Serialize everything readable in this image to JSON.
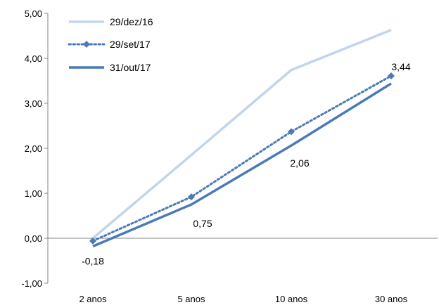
{
  "chart_data": {
    "type": "line",
    "categories": [
      "2 anos",
      "5 anos",
      "10 anos",
      "30 anos"
    ],
    "ylim": [
      -1,
      5
    ],
    "yticks": [
      "-1,00",
      "0,00",
      "1,00",
      "2,00",
      "3,00",
      "4,00",
      "5,00"
    ],
    "ytick_values": [
      -1,
      0,
      1,
      2,
      3,
      4,
      5
    ],
    "legend_position": "top-left",
    "grid": false,
    "series": [
      {
        "name": "29/dez/16",
        "values": [
          0.0,
          1.85,
          3.74,
          4.63
        ],
        "color": "#c3d5ea",
        "style": "solid",
        "marker": "none"
      },
      {
        "name": "29/set/17",
        "values": [
          -0.06,
          0.92,
          2.37,
          3.61
        ],
        "color": "#4a7ab8",
        "style": "dotted",
        "marker": "diamond"
      },
      {
        "name": "31/out/17",
        "values": [
          -0.18,
          0.75,
          2.06,
          3.44
        ],
        "color": "#4a7ab8",
        "style": "solid",
        "marker": "none"
      }
    ],
    "data_labels": [
      {
        "series": 2,
        "index": 0,
        "text": "-0,18"
      },
      {
        "series": 2,
        "index": 1,
        "text": "0,75"
      },
      {
        "series": 2,
        "index": 2,
        "text": "2,06"
      },
      {
        "series": 2,
        "index": 3,
        "text": "3,44"
      }
    ]
  }
}
